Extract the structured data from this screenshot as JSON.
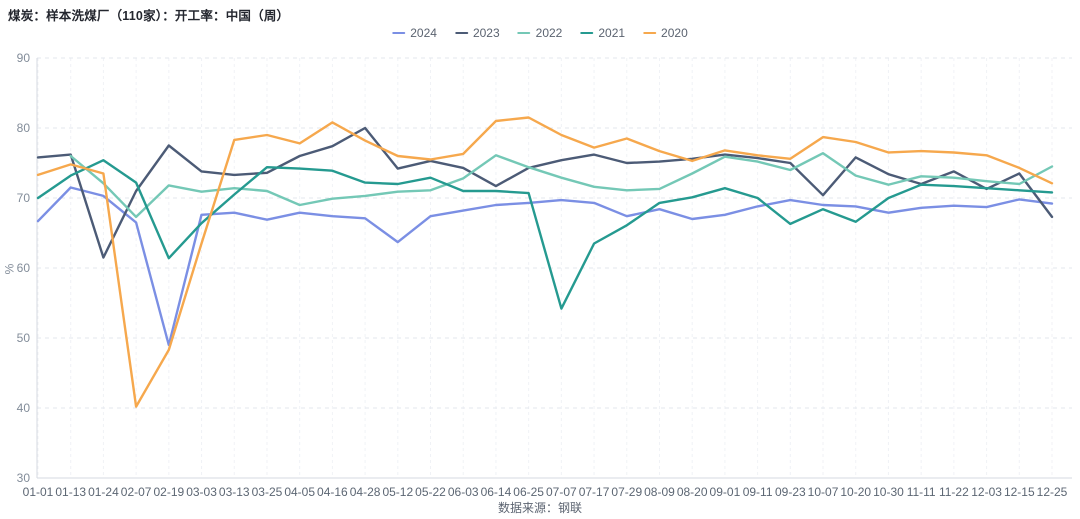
{
  "header": {
    "title": "煤炭：样本洗煤厂（110家）：开工率：中国（周）"
  },
  "footer": {
    "source": "数据来源：钢联"
  },
  "chart_data": {
    "type": "line",
    "title": "煤炭：样本洗煤厂（110家）：开工率：中国（周）",
    "xlabel": "",
    "ylabel": "%",
    "ylim": [
      30,
      90
    ],
    "y_ticks": [
      30,
      40,
      50,
      60,
      70,
      80,
      90
    ],
    "grid": true,
    "legend_position": "top-center",
    "categories": [
      "01-01",
      "01-13",
      "01-24",
      "02-07",
      "02-19",
      "03-03",
      "03-13",
      "03-25",
      "04-05",
      "04-16",
      "04-28",
      "05-12",
      "05-22",
      "06-03",
      "06-14",
      "06-25",
      "07-07",
      "07-17",
      "07-29",
      "08-09",
      "08-20",
      "09-01",
      "09-11",
      "09-23",
      "10-07",
      "10-20",
      "10-30",
      "11-11",
      "11-22",
      "12-03",
      "12-15",
      "12-25"
    ],
    "series": [
      {
        "name": "2024",
        "color": "#7B8FE4",
        "values": [
          66.7,
          71.5,
          70.3,
          66.5,
          49.0,
          67.6,
          67.9,
          66.9,
          67.9,
          67.4,
          67.1,
          63.7,
          67.4,
          68.2,
          69.0,
          69.3,
          69.7,
          69.3,
          67.4,
          68.4,
          67.0,
          67.6,
          68.8,
          69.7,
          69.0,
          68.8,
          67.9,
          68.6,
          68.9,
          68.7,
          69.8,
          69.2
        ]
      },
      {
        "name": "2023",
        "color": "#4C5B76",
        "values": [
          75.8,
          76.2,
          61.5,
          71.0,
          77.5,
          73.8,
          73.3,
          73.6,
          76.0,
          77.4,
          80.0,
          74.2,
          75.3,
          74.3,
          71.7,
          74.3,
          75.4,
          76.2,
          75.0,
          75.2,
          75.6,
          76.2,
          75.7,
          75.0,
          70.4,
          75.8,
          73.4,
          72.0,
          73.8,
          71.3,
          73.5,
          67.3
        ]
      },
      {
        "name": "2022",
        "color": "#74C8B6",
        "values": [
          null,
          76.0,
          72.1,
          67.3,
          71.8,
          70.9,
          71.4,
          71.0,
          69.0,
          69.9,
          70.3,
          70.9,
          71.1,
          72.8,
          76.1,
          74.4,
          72.9,
          71.6,
          71.1,
          71.3,
          73.5,
          75.9,
          75.2,
          74.0,
          76.4,
          73.2,
          71.9,
          73.1,
          72.9,
          72.4,
          72.0,
          74.5
        ]
      },
      {
        "name": "2021",
        "color": "#259A90",
        "values": [
          70.0,
          73.2,
          75.4,
          72.2,
          61.4,
          66.4,
          70.5,
          74.4,
          74.2,
          73.9,
          72.2,
          72.0,
          72.9,
          71.0,
          71.0,
          70.7,
          54.2,
          63.5,
          66.1,
          69.3,
          70.1,
          71.4,
          70.0,
          66.3,
          68.4,
          66.6,
          70.0,
          71.9,
          71.7,
          71.4,
          71.1,
          70.8
        ]
      },
      {
        "name": "2020",
        "color": "#F6A84D",
        "values": [
          73.3,
          74.8,
          73.5,
          40.2,
          48.3,
          63.5,
          78.3,
          79.0,
          77.8,
          80.8,
          78.2,
          76.0,
          75.5,
          76.3,
          81.0,
          81.5,
          79.0,
          77.2,
          78.5,
          76.7,
          75.3,
          76.8,
          76.1,
          75.6,
          78.7,
          78.0,
          76.5,
          76.7,
          76.5,
          76.1,
          74.3,
          72.1
        ]
      }
    ]
  }
}
